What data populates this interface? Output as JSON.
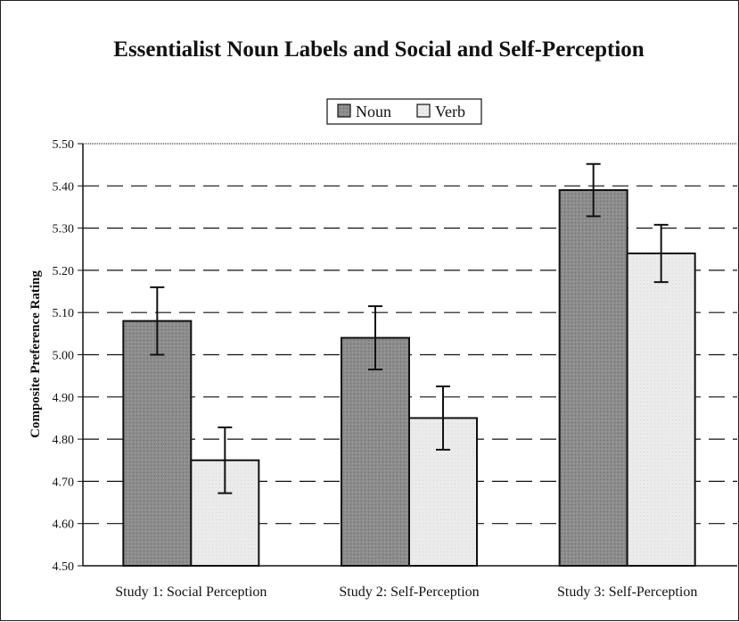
{
  "chart_data": {
    "type": "bar",
    "title": "Essentialist Noun Labels and Social and Self-Perception",
    "ylabel": "Composite Preference Rating",
    "xlabel": "",
    "ylim": [
      4.5,
      5.5
    ],
    "yticks": [
      "4.50",
      "4.60",
      "4.70",
      "4.80",
      "4.90",
      "5.00",
      "5.10",
      "5.20",
      "5.30",
      "5.40",
      "5.50"
    ],
    "grid": "dashed-horizontal",
    "legend_position": "top-center",
    "categories": [
      "Study 1: Social Perception",
      "Study 2: Self-Perception",
      "Study 3: Self-Perception"
    ],
    "series": [
      {
        "name": "Noun",
        "color": "#8c8c8c",
        "values": [
          5.08,
          5.04,
          5.39
        ],
        "errors": [
          0.08,
          0.075,
          0.062
        ]
      },
      {
        "name": "Verb",
        "color": "#ebebeb",
        "values": [
          4.75,
          4.85,
          5.24
        ],
        "errors": [
          0.078,
          0.075,
          0.068
        ]
      }
    ]
  }
}
